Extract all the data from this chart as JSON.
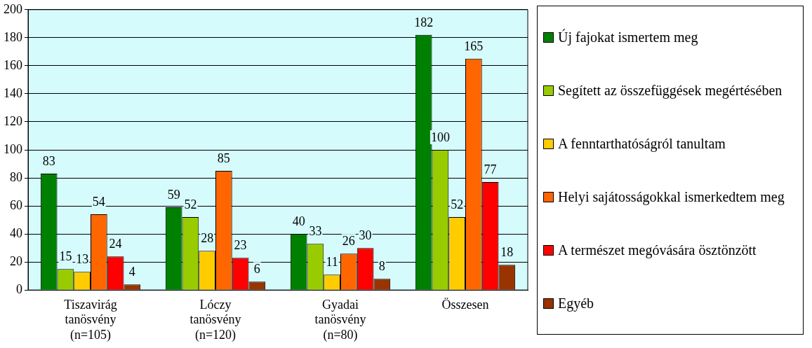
{
  "chart_data": {
    "type": "bar",
    "categories": [
      "Tiszavirág\ntanösvény\n(n=105)",
      "Lóczy\ntanösvény\n(n=120)",
      "Gyadai\ntanösvény\n(n=80)",
      "Összesen"
    ],
    "series": [
      {
        "name": "Új fajokat ismertem meg",
        "color": "#008000",
        "values": [
          83,
          59,
          40,
          182
        ]
      },
      {
        "name": "Segített az összefüggések megértésében",
        "color": "#99cc00",
        "values": [
          15,
          52,
          33,
          100
        ]
      },
      {
        "name": "A fenntarthatóságról tanultam",
        "color": "#ffcc00",
        "values": [
          13,
          28,
          11,
          52
        ]
      },
      {
        "name": "Helyi sajátosságokkal ismerkedtem meg",
        "color": "#ff6600",
        "values": [
          54,
          85,
          26,
          165
        ]
      },
      {
        "name": "A természet megóvására ösztönzött",
        "color": "#ff0000",
        "values": [
          24,
          23,
          30,
          77
        ]
      },
      {
        "name": "Egyéb",
        "color": "#993300",
        "values": [
          4,
          6,
          8,
          18
        ]
      }
    ],
    "ylim": [
      0,
      200
    ],
    "yticks": [
      0,
      20,
      40,
      60,
      80,
      100,
      120,
      140,
      160,
      180,
      200
    ],
    "grid": "y",
    "legend": "right",
    "data_labels": true
  }
}
